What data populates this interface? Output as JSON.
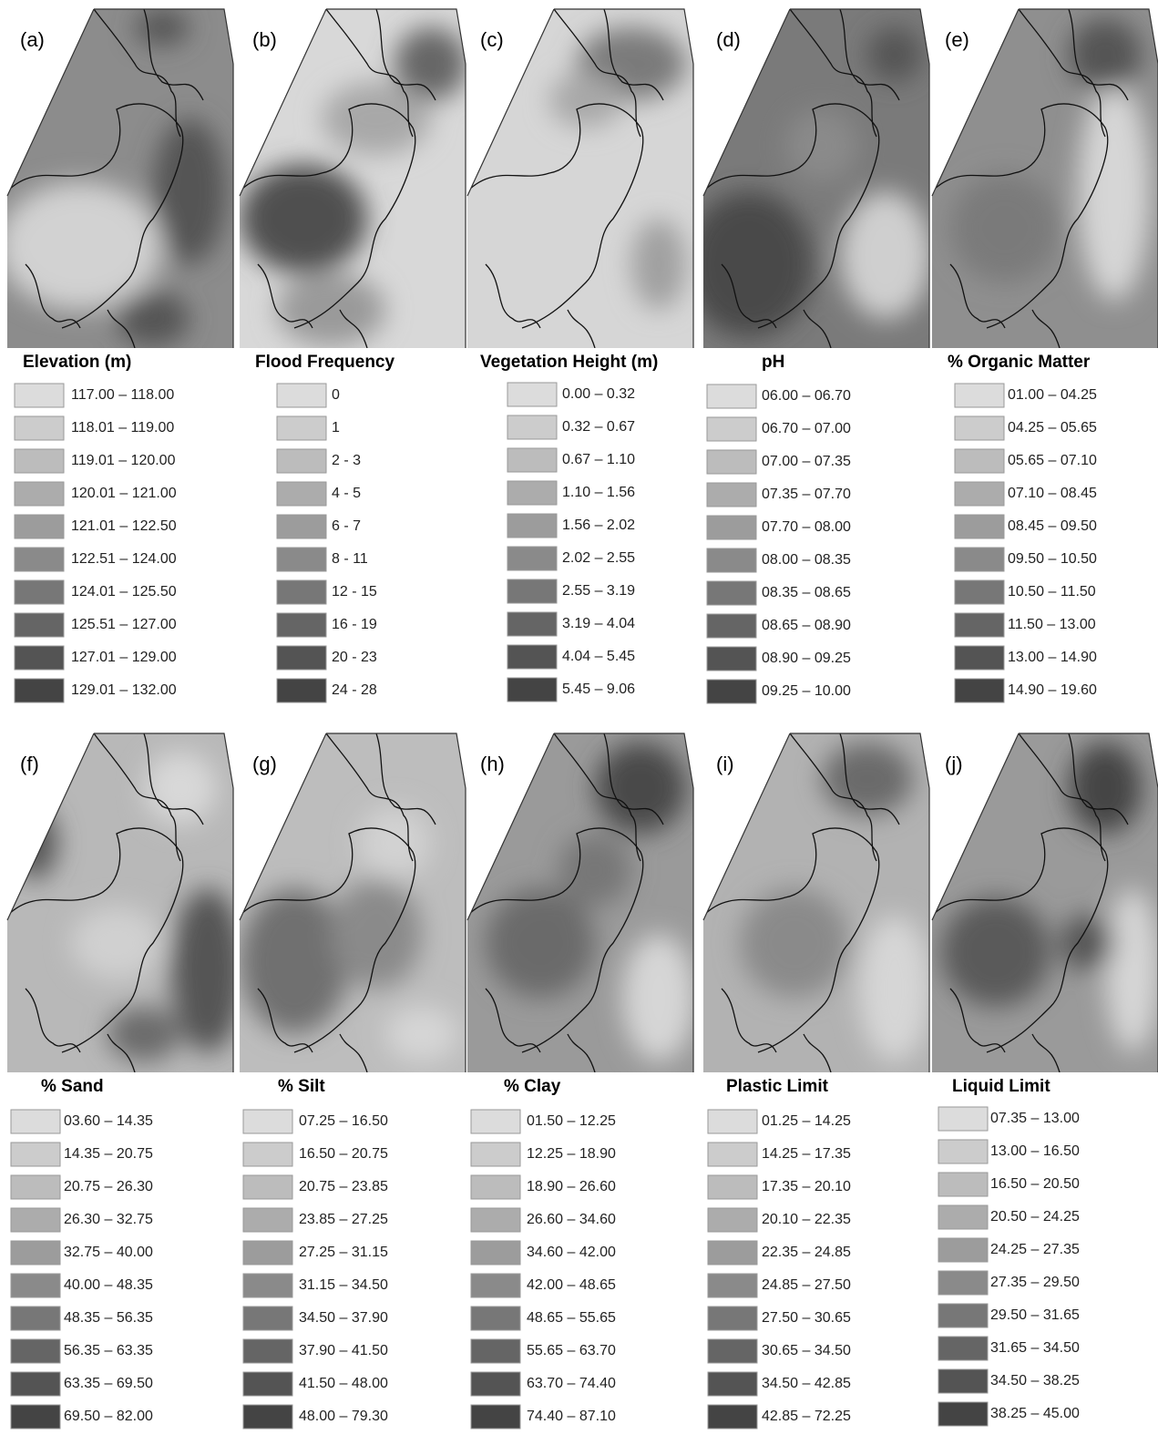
{
  "swatch_colors": [
    "#dcdcdc",
    "#cccccc",
    "#bcbcbc",
    "#acacac",
    "#9c9c9c",
    "#8a8a8a",
    "#777777",
    "#656565",
    "#545454",
    "#444444"
  ],
  "panels": [
    {
      "label": "(a)",
      "title": "Elevation (m)",
      "classes": [
        "117.00 – 118.00",
        "118.01 – 119.00",
        "119.01 – 120.00",
        "120.01 – 121.00",
        "121.01 – 122.50",
        "122.51 – 124.00",
        "124.01 – 125.50",
        "125.51 – 127.00",
        "127.01 – 129.00",
        "129.01 – 132.00"
      ]
    },
    {
      "label": "(b)",
      "title": "Flood Frequency",
      "classes": [
        "0",
        "1",
        "2 - 3",
        "4 - 5",
        "6 - 7",
        "8 - 11",
        "12 - 15",
        "16 - 19",
        "20 - 23",
        "24 - 28"
      ]
    },
    {
      "label": "(c)",
      "title": "Vegetation Height (m)",
      "classes": [
        "0.00 – 0.32",
        "0.32 – 0.67",
        "0.67 – 1.10",
        "1.10 – 1.56",
        "1.56 – 2.02",
        "2.02 – 2.55",
        "2.55 – 3.19",
        "3.19 – 4.04",
        "4.04 – 5.45",
        "5.45 – 9.06"
      ]
    },
    {
      "label": "(d)",
      "title": "pH",
      "classes": [
        "06.00 – 06.70",
        "06.70 – 07.00",
        "07.00 – 07.35",
        "07.35 – 07.70",
        "07.70 – 08.00",
        "08.00 – 08.35",
        "08.35 – 08.65",
        "08.65 – 08.90",
        "08.90 – 09.25",
        "09.25 – 10.00"
      ]
    },
    {
      "label": "(e)",
      "title": "% Organic Matter",
      "classes": [
        "01.00 – 04.25",
        "04.25 – 05.65",
        "05.65 – 07.10",
        "07.10 – 08.45",
        "08.45 – 09.50",
        "09.50 – 10.50",
        "10.50 – 11.50",
        "11.50 – 13.00",
        "13.00 – 14.90",
        "14.90 – 19.60"
      ]
    },
    {
      "label": "(f)",
      "title": "% Sand",
      "classes": [
        "03.60 – 14.35",
        "14.35 – 20.75",
        "20.75 – 26.30",
        "26.30 – 32.75",
        "32.75 – 40.00",
        "40.00 – 48.35",
        "48.35 – 56.35",
        "56.35 – 63.35",
        "63.35 – 69.50",
        "69.50 – 82.00"
      ]
    },
    {
      "label": "(g)",
      "title": "% Silt",
      "classes": [
        "07.25 – 16.50",
        "16.50 – 20.75",
        "20.75 – 23.85",
        "23.85 – 27.25",
        "27.25 – 31.15",
        "31.15 – 34.50",
        "34.50 – 37.90",
        "37.90 – 41.50",
        "41.50 – 48.00",
        "48.00 – 79.30"
      ]
    },
    {
      "label": "(h)",
      "title": "% Clay",
      "classes": [
        "01.50 – 12.25",
        "12.25 – 18.90",
        "18.90 – 26.60",
        "26.60 – 34.60",
        "34.60 – 42.00",
        "42.00 – 48.65",
        "48.65 – 55.65",
        "55.65 – 63.70",
        "63.70 – 74.40",
        "74.40 – 87.10"
      ]
    },
    {
      "label": "(i)",
      "title": "Plastic Limit",
      "classes": [
        "01.25 – 14.25",
        "14.25 – 17.35",
        "17.35 – 20.10",
        "20.10 – 22.35",
        "22.35 – 24.85",
        "24.85 – 27.50",
        "27.50 – 30.65",
        "30.65 – 34.50",
        "34.50 – 42.85",
        "42.85 – 72.25"
      ]
    },
    {
      "label": "(j)",
      "title": "Liquid Limit",
      "classes": [
        "07.35 – 13.00",
        "13.00 – 16.50",
        "16.50 – 20.50",
        "20.50 – 24.25",
        "24.25 – 27.35",
        "27.35 – 29.50",
        "29.50 – 31.65",
        "31.65 – 34.50",
        "34.50 – 38.25",
        "38.25 – 45.00"
      ]
    }
  ]
}
